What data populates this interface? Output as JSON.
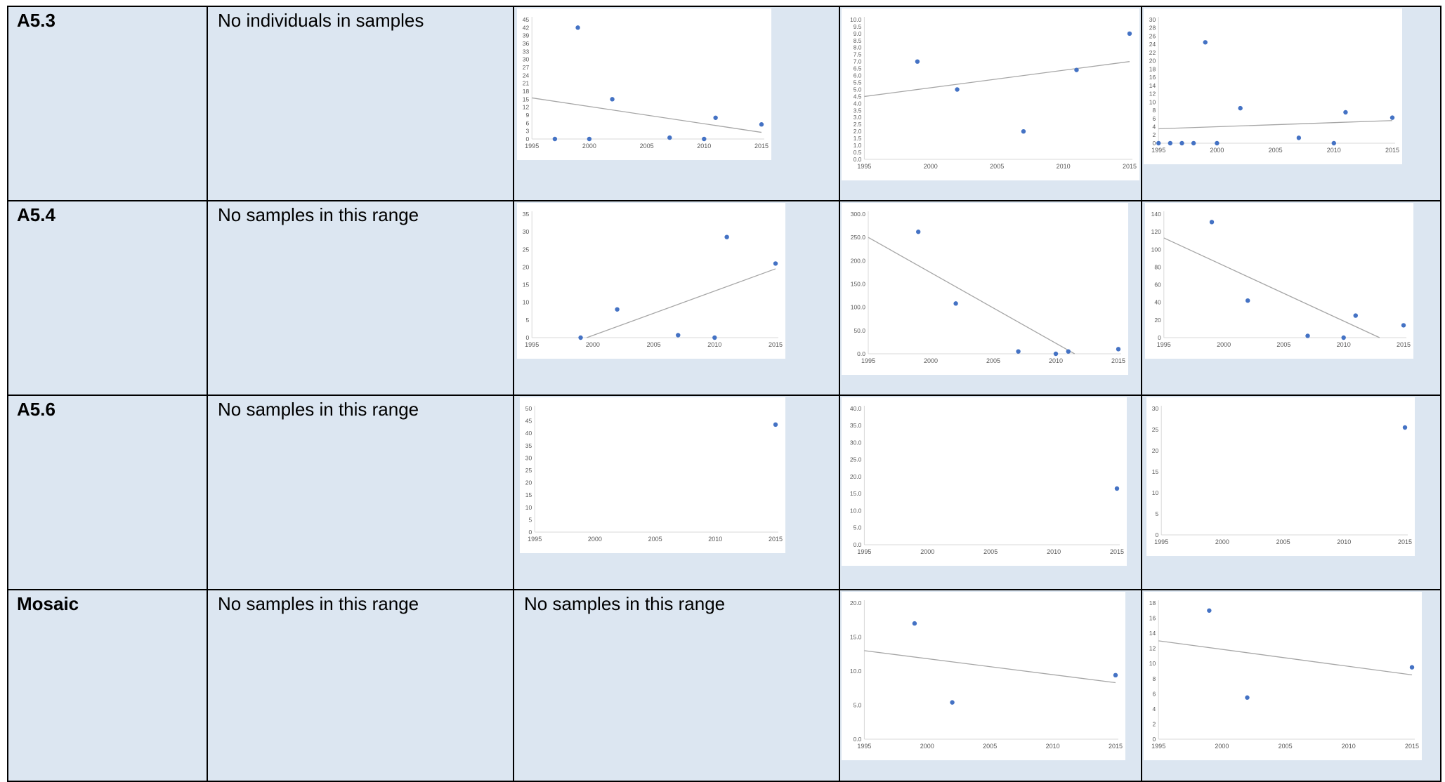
{
  "rows": [
    {
      "label": "A5.3",
      "note": "No individuals in samples"
    },
    {
      "label": "A5.4",
      "note": "No samples in this range"
    },
    {
      "label": "A5.6",
      "note": "No samples in this range"
    },
    {
      "label": "Mosaic",
      "note": "No samples in this range",
      "note2": "No samples in this range"
    }
  ],
  "chart_data": [
    {
      "id": "A5.3-1",
      "type": "scatter",
      "x": [
        1997,
        1999,
        2000,
        2002,
        2007,
        2010,
        2011,
        2015
      ],
      "y": [
        0,
        42,
        0,
        15,
        0.5,
        0,
        8,
        5.5
      ],
      "trendline": [
        [
          1995,
          15.5
        ],
        [
          2015,
          2.5
        ]
      ],
      "xlim": [
        1995,
        2015
      ],
      "ylim": [
        0,
        45
      ],
      "xticks": [
        1995,
        2000,
        2005,
        2010,
        2015
      ],
      "yticks": [
        0,
        3,
        6,
        9,
        12,
        15,
        18,
        21,
        24,
        27,
        30,
        33,
        36,
        39,
        42,
        45
      ],
      "ytick_labels": [
        "0",
        "3",
        "6",
        "9",
        "12",
        "15",
        "18",
        "21",
        "24",
        "27",
        "30",
        "33",
        "36",
        "39",
        "42",
        "45"
      ]
    },
    {
      "id": "A5.3-2",
      "type": "scatter",
      "x": [
        1999,
        2002,
        2007,
        2011,
        2015
      ],
      "y": [
        7.0,
        5.0,
        2.0,
        6.4,
        9.0
      ],
      "trendline": [
        [
          1995,
          4.5
        ],
        [
          2015,
          7.0
        ]
      ],
      "xlim": [
        1995,
        2015
      ],
      "ylim": [
        0,
        10
      ],
      "xticks": [
        1995,
        2000,
        2005,
        2010,
        2015
      ],
      "yticks": [
        0,
        0.5,
        1,
        1.5,
        2,
        2.5,
        3,
        3.5,
        4,
        4.5,
        5,
        5.5,
        6,
        6.5,
        7,
        7.5,
        8,
        8.5,
        9,
        9.5,
        10
      ],
      "ytick_labels": [
        "0.0",
        "0.5",
        "1.0",
        "1.5",
        "2.0",
        "2.5",
        "3.0",
        "3.5",
        "4.0",
        "4.5",
        "5.0",
        "5.5",
        "6.0",
        "6.5",
        "7.0",
        "7.5",
        "8.0",
        "8.5",
        "9.0",
        "9.5",
        "10.0"
      ]
    },
    {
      "id": "A5.3-3",
      "type": "scatter",
      "x": [
        1995,
        1996,
        1997,
        1998,
        1999,
        2000,
        2002,
        2007,
        2010,
        2011,
        2015
      ],
      "y": [
        0,
        0,
        0,
        0,
        24.5,
        0,
        8.5,
        1.3,
        0,
        7.5,
        6.2
      ],
      "trendline": [
        [
          1995,
          3.5
        ],
        [
          2015,
          5.5
        ]
      ],
      "xlim": [
        1995,
        2015
      ],
      "ylim": [
        0,
        30
      ],
      "xticks": [
        1995,
        2000,
        2005,
        2010,
        2015
      ],
      "yticks": [
        0,
        2,
        4,
        6,
        8,
        10,
        12,
        14,
        16,
        18,
        20,
        22,
        24,
        26,
        28,
        30
      ],
      "ytick_labels": [
        "0",
        "2",
        "4",
        "6",
        "8",
        "10",
        "12",
        "14",
        "16",
        "18",
        "20",
        "22",
        "24",
        "26",
        "28",
        "30"
      ]
    },
    {
      "id": "A5.4-1",
      "type": "scatter",
      "x": [
        1999,
        2002,
        2007,
        2010,
        2011,
        2015
      ],
      "y": [
        0,
        8,
        0.7,
        0,
        28.5,
        21
      ],
      "trendline": [
        [
          1999.5,
          0
        ],
        [
          2015,
          19.5
        ]
      ],
      "xlim": [
        1995,
        2015
      ],
      "ylim": [
        0,
        35
      ],
      "xticks": [
        1995,
        2000,
        2005,
        2010,
        2015
      ],
      "yticks": [
        0,
        5,
        10,
        15,
        20,
        25,
        30,
        35
      ],
      "ytick_labels": [
        "0",
        "5",
        "10",
        "15",
        "20",
        "25",
        "30",
        "35"
      ]
    },
    {
      "id": "A5.4-2",
      "type": "scatter",
      "x": [
        1999,
        2002,
        2007,
        2010,
        2011,
        2015
      ],
      "y": [
        262,
        108,
        5,
        0,
        5,
        10
      ],
      "trendline": [
        [
          1995,
          250
        ],
        [
          2011.5,
          0
        ]
      ],
      "xlim": [
        1995,
        2015
      ],
      "ylim": [
        0,
        300
      ],
      "xticks": [
        1995,
        2000,
        2005,
        2010,
        2015
      ],
      "yticks": [
        0,
        50,
        100,
        150,
        200,
        250,
        300
      ],
      "ytick_labels": [
        "0.0",
        "50.0",
        "100.0",
        "150.0",
        "200.0",
        "250.0",
        "300.0"
      ]
    },
    {
      "id": "A5.4-3",
      "type": "scatter",
      "x": [
        1999,
        2002,
        2007,
        2010,
        2011,
        2015
      ],
      "y": [
        131,
        42,
        2,
        0,
        25,
        14
      ],
      "trendline": [
        [
          1995,
          113
        ],
        [
          2013,
          0
        ]
      ],
      "xlim": [
        1995,
        2015
      ],
      "ylim": [
        0,
        140
      ],
      "xticks": [
        1995,
        2000,
        2005,
        2010,
        2015
      ],
      "yticks": [
        0,
        20,
        40,
        60,
        80,
        100,
        120,
        140
      ],
      "ytick_labels": [
        "0",
        "20",
        "40",
        "60",
        "80",
        "100",
        "120",
        "140"
      ]
    },
    {
      "id": "A5.6-1",
      "type": "scatter",
      "x": [
        2015
      ],
      "y": [
        43.5
      ],
      "trendline": null,
      "xlim": [
        1995,
        2015
      ],
      "ylim": [
        0,
        50
      ],
      "xticks": [
        1995,
        2000,
        2005,
        2010,
        2015
      ],
      "yticks": [
        0,
        5,
        10,
        15,
        20,
        25,
        30,
        35,
        40,
        45,
        50
      ],
      "ytick_labels": [
        "0",
        "5",
        "10",
        "15",
        "20",
        "25",
        "30",
        "35",
        "40",
        "45",
        "50"
      ]
    },
    {
      "id": "A5.6-2",
      "type": "scatter",
      "x": [
        2015
      ],
      "y": [
        16.5
      ],
      "trendline": null,
      "xlim": [
        1995,
        2015
      ],
      "ylim": [
        0,
        40
      ],
      "xticks": [
        1995,
        2000,
        2005,
        2010,
        2015
      ],
      "yticks": [
        0,
        5,
        10,
        15,
        20,
        25,
        30,
        35,
        40
      ],
      "ytick_labels": [
        "0.0",
        "5.0",
        "10.0",
        "15.0",
        "20.0",
        "25.0",
        "30.0",
        "35.0",
        "40.0"
      ]
    },
    {
      "id": "A5.6-3",
      "type": "scatter",
      "x": [
        2015
      ],
      "y": [
        25.5
      ],
      "trendline": null,
      "xlim": [
        1995,
        2015
      ],
      "ylim": [
        0,
        30
      ],
      "xticks": [
        1995,
        2000,
        2005,
        2010,
        2015
      ],
      "yticks": [
        0,
        5,
        10,
        15,
        20,
        25,
        30
      ],
      "ytick_labels": [
        "0",
        "5",
        "10",
        "15",
        "20",
        "25",
        "30"
      ]
    },
    {
      "id": "Mosaic-2",
      "type": "scatter",
      "x": [
        1999,
        2002,
        2015
      ],
      "y": [
        17,
        5.4,
        9.4
      ],
      "trendline": [
        [
          1995,
          13
        ],
        [
          2015,
          8.3
        ]
      ],
      "xlim": [
        1995,
        2015
      ],
      "ylim": [
        0,
        20
      ],
      "xticks": [
        1995,
        2000,
        2005,
        2010,
        2015
      ],
      "yticks": [
        0,
        5,
        10,
        15,
        20
      ],
      "ytick_labels": [
        "0.0",
        "5.0",
        "10.0",
        "15.0",
        "20.0"
      ]
    },
    {
      "id": "Mosaic-3",
      "type": "scatter",
      "x": [
        1999,
        2002,
        2015
      ],
      "y": [
        17,
        5.5,
        9.5
      ],
      "trendline": [
        [
          1995,
          13
        ],
        [
          2015,
          8.5
        ]
      ],
      "xlim": [
        1995,
        2015
      ],
      "ylim": [
        0,
        18
      ],
      "xticks": [
        1995,
        2000,
        2005,
        2010,
        2015
      ],
      "yticks": [
        0,
        2,
        4,
        6,
        8,
        10,
        12,
        14,
        16,
        18
      ],
      "ytick_labels": [
        "0",
        "2",
        "4",
        "6",
        "8",
        "10",
        "12",
        "14",
        "16",
        "18"
      ]
    }
  ]
}
